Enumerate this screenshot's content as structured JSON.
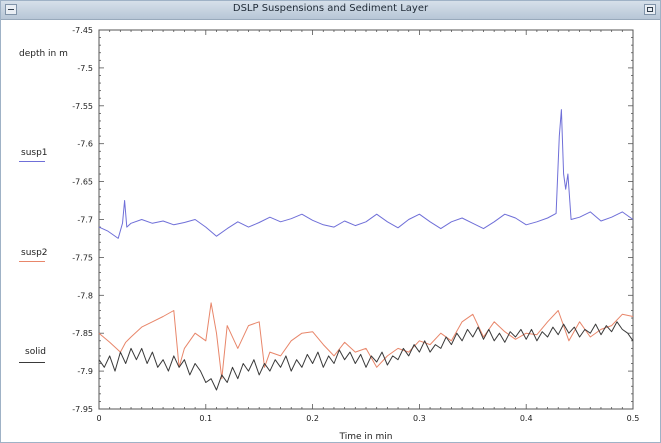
{
  "window": {
    "title": "DSLP Suspensions and Sediment Layer"
  },
  "chart_data": {
    "type": "line",
    "title": "",
    "xlabel": "Time in min",
    "ylabel": "depth in m",
    "xlim": [
      0,
      0.5
    ],
    "ylim": [
      -7.95,
      -7.45
    ],
    "x_ticks": [
      "0",
      "0.1",
      "0.2",
      "0.3",
      "0.4",
      "0.5"
    ],
    "y_ticks": [
      "-7.45",
      "-7.5",
      "-7.55",
      "-7.6",
      "-7.65",
      "-7.7",
      "-7.75",
      "-7.8",
      "-7.85",
      "-7.9",
      "-7.95"
    ],
    "grid": false,
    "legend_position": "left",
    "series": [
      {
        "name": "susp1",
        "color": "#6f6fd8",
        "x": [
          0,
          0.008,
          0.018,
          0.022,
          0.024,
          0.026,
          0.03,
          0.04,
          0.05,
          0.06,
          0.07,
          0.08,
          0.09,
          0.1,
          0.11,
          0.12,
          0.13,
          0.14,
          0.15,
          0.16,
          0.17,
          0.18,
          0.19,
          0.2,
          0.21,
          0.22,
          0.23,
          0.24,
          0.25,
          0.26,
          0.27,
          0.28,
          0.29,
          0.3,
          0.31,
          0.32,
          0.33,
          0.34,
          0.35,
          0.36,
          0.37,
          0.38,
          0.39,
          0.4,
          0.41,
          0.42,
          0.428,
          0.431,
          0.433,
          0.435,
          0.437,
          0.439,
          0.442,
          0.45,
          0.46,
          0.47,
          0.48,
          0.49,
          0.5
        ],
        "y": [
          -7.71,
          -7.715,
          -7.725,
          -7.705,
          -7.675,
          -7.71,
          -7.705,
          -7.7,
          -7.705,
          -7.702,
          -7.707,
          -7.704,
          -7.7,
          -7.71,
          -7.722,
          -7.712,
          -7.703,
          -7.71,
          -7.704,
          -7.697,
          -7.703,
          -7.699,
          -7.693,
          -7.701,
          -7.707,
          -7.71,
          -7.702,
          -7.708,
          -7.703,
          -7.693,
          -7.703,
          -7.711,
          -7.7,
          -7.693,
          -7.703,
          -7.712,
          -7.703,
          -7.698,
          -7.705,
          -7.712,
          -7.703,
          -7.693,
          -7.698,
          -7.707,
          -7.703,
          -7.698,
          -7.692,
          -7.59,
          -7.555,
          -7.64,
          -7.66,
          -7.64,
          -7.7,
          -7.697,
          -7.69,
          -7.702,
          -7.697,
          -7.69,
          -7.7
        ]
      },
      {
        "name": "susp2",
        "color": "#e8866a",
        "x": [
          0,
          0.01,
          0.02,
          0.025,
          0.03,
          0.04,
          0.05,
          0.06,
          0.07,
          0.075,
          0.08,
          0.09,
          0.1,
          0.105,
          0.11,
          0.115,
          0.12,
          0.13,
          0.14,
          0.15,
          0.155,
          0.16,
          0.17,
          0.18,
          0.19,
          0.2,
          0.21,
          0.22,
          0.23,
          0.24,
          0.25,
          0.26,
          0.27,
          0.28,
          0.29,
          0.3,
          0.31,
          0.32,
          0.33,
          0.34,
          0.35,
          0.36,
          0.37,
          0.38,
          0.39,
          0.4,
          0.41,
          0.42,
          0.43,
          0.44,
          0.45,
          0.46,
          0.47,
          0.48,
          0.49,
          0.5
        ],
        "y": [
          -7.85,
          -7.862,
          -7.875,
          -7.862,
          -7.855,
          -7.842,
          -7.835,
          -7.828,
          -7.82,
          -7.895,
          -7.87,
          -7.85,
          -7.86,
          -7.81,
          -7.85,
          -7.91,
          -7.84,
          -7.87,
          -7.84,
          -7.835,
          -7.895,
          -7.875,
          -7.88,
          -7.86,
          -7.85,
          -7.848,
          -7.865,
          -7.88,
          -7.862,
          -7.875,
          -7.87,
          -7.895,
          -7.88,
          -7.87,
          -7.875,
          -7.86,
          -7.865,
          -7.85,
          -7.86,
          -7.835,
          -7.825,
          -7.855,
          -7.835,
          -7.848,
          -7.858,
          -7.85,
          -7.852,
          -7.835,
          -7.82,
          -7.86,
          -7.835,
          -7.855,
          -7.845,
          -7.84,
          -7.825,
          -7.828
        ]
      },
      {
        "name": "solid",
        "color": "#3a3a3a",
        "x": [
          0,
          0.005,
          0.01,
          0.015,
          0.02,
          0.025,
          0.03,
          0.035,
          0.04,
          0.045,
          0.05,
          0.055,
          0.06,
          0.065,
          0.07,
          0.075,
          0.08,
          0.085,
          0.09,
          0.095,
          0.1,
          0.105,
          0.11,
          0.115,
          0.12,
          0.125,
          0.13,
          0.135,
          0.14,
          0.145,
          0.15,
          0.155,
          0.16,
          0.165,
          0.17,
          0.175,
          0.18,
          0.185,
          0.19,
          0.195,
          0.2,
          0.205,
          0.21,
          0.215,
          0.22,
          0.225,
          0.23,
          0.235,
          0.24,
          0.245,
          0.25,
          0.255,
          0.26,
          0.265,
          0.27,
          0.275,
          0.28,
          0.285,
          0.29,
          0.295,
          0.3,
          0.305,
          0.31,
          0.315,
          0.32,
          0.325,
          0.33,
          0.335,
          0.34,
          0.345,
          0.35,
          0.355,
          0.36,
          0.365,
          0.37,
          0.375,
          0.38,
          0.385,
          0.39,
          0.395,
          0.4,
          0.405,
          0.41,
          0.415,
          0.42,
          0.425,
          0.43,
          0.435,
          0.44,
          0.445,
          0.45,
          0.455,
          0.46,
          0.465,
          0.47,
          0.475,
          0.48,
          0.485,
          0.49,
          0.495,
          0.5
        ],
        "y": [
          -7.885,
          -7.895,
          -7.88,
          -7.9,
          -7.875,
          -7.89,
          -7.87,
          -7.885,
          -7.87,
          -7.89,
          -7.875,
          -7.895,
          -7.885,
          -7.9,
          -7.88,
          -7.895,
          -7.885,
          -7.905,
          -7.89,
          -7.9,
          -7.915,
          -7.91,
          -7.925,
          -7.905,
          -7.915,
          -7.895,
          -7.91,
          -7.89,
          -7.9,
          -7.885,
          -7.905,
          -7.89,
          -7.9,
          -7.885,
          -7.895,
          -7.88,
          -7.9,
          -7.885,
          -7.895,
          -7.878,
          -7.89,
          -7.875,
          -7.895,
          -7.88,
          -7.89,
          -7.872,
          -7.885,
          -7.875,
          -7.89,
          -7.878,
          -7.895,
          -7.88,
          -7.888,
          -7.875,
          -7.892,
          -7.88,
          -7.885,
          -7.87,
          -7.88,
          -7.865,
          -7.875,
          -7.86,
          -7.875,
          -7.865,
          -7.87,
          -7.855,
          -7.865,
          -7.85,
          -7.86,
          -7.845,
          -7.855,
          -7.842,
          -7.858,
          -7.845,
          -7.86,
          -7.85,
          -7.862,
          -7.848,
          -7.855,
          -7.845,
          -7.858,
          -7.845,
          -7.86,
          -7.848,
          -7.855,
          -7.842,
          -7.852,
          -7.838,
          -7.85,
          -7.842,
          -7.855,
          -7.845,
          -7.85,
          -7.838,
          -7.852,
          -7.84,
          -7.848,
          -7.835,
          -7.845,
          -7.85,
          -7.86
        ]
      }
    ]
  }
}
